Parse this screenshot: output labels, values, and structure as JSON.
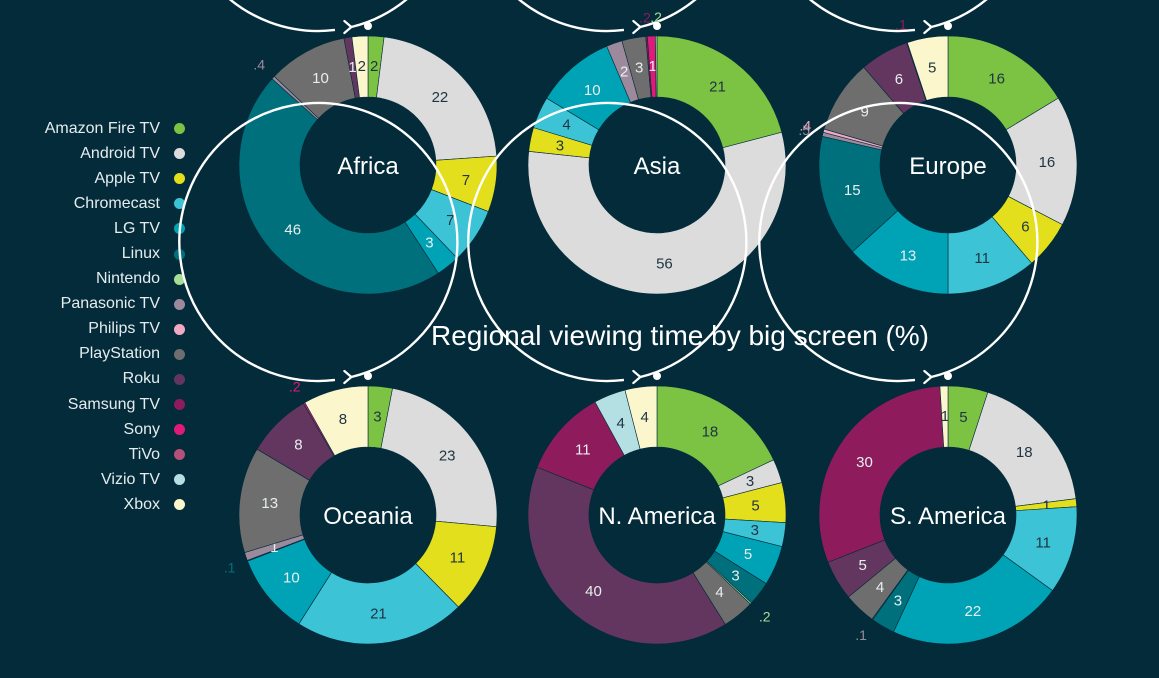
{
  "title": "Regional viewing time by big screen (%)",
  "colors": {
    "background": "#032b3a",
    "Amazon Fire TV": "#7cc243",
    "Android TV": "#dcdcdc",
    "Apple TV": "#e3df1c",
    "Chromecast": "#3cc3d5",
    "LG TV": "#00a3b5",
    "Linux": "#00707c",
    "Nintendo": "#a8dd96",
    "Panasonic TV": "#9c8a9c",
    "Philips TV": "#f1a9c4",
    "PlayStation": "#6e6e6e",
    "Roku": "#62365e",
    "Samsung TV": "#8e1c5c",
    "Sony": "#e0197a",
    "TiVo": "#b4507a",
    "Vizio TV": "#b4e0e4",
    "Xbox": "#fbf6cc"
  },
  "legend": [
    "Amazon Fire TV",
    "Android TV",
    "Apple TV ",
    "Chromecast",
    "LG TV",
    "Linux",
    "Nintendo",
    "Panasonic TV",
    "Philips TV",
    "PlayStation",
    "Roku",
    "Samsung TV",
    "Sony",
    "TiVo",
    "Vizio TV",
    "Xbox"
  ],
  "chart_data": [
    {
      "type": "pie",
      "variant": "donut",
      "title": "Africa",
      "slices": [
        {
          "name": "Amazon Fire TV",
          "value": 2,
          "label": "2"
        },
        {
          "name": "Android TV",
          "value": 22,
          "label": "22"
        },
        {
          "name": "Apple TV",
          "value": 7,
          "label": "7"
        },
        {
          "name": "Chromecast",
          "value": 7,
          "label": "7"
        },
        {
          "name": "LG TV",
          "value": 3,
          "label": "3"
        },
        {
          "name": "Linux",
          "value": 46,
          "label": "46"
        },
        {
          "name": "Panasonic TV",
          "value": 0.4,
          "label": ".4"
        },
        {
          "name": "PlayStation",
          "value": 10,
          "label": "10"
        },
        {
          "name": "Roku",
          "value": 1,
          "label": "1"
        },
        {
          "name": "Xbox",
          "value": 2,
          "label": "2"
        }
      ]
    },
    {
      "type": "pie",
      "variant": "donut",
      "title": "Asia",
      "slices": [
        {
          "name": "Amazon Fire TV",
          "value": 21,
          "label": "21"
        },
        {
          "name": "Android TV",
          "value": 56,
          "label": "56"
        },
        {
          "name": "Apple TV",
          "value": 3,
          "label": "3"
        },
        {
          "name": "Chromecast",
          "value": 4,
          "label": "4"
        },
        {
          "name": "LG TV",
          "value": 10,
          "label": "10"
        },
        {
          "name": "Panasonic TV",
          "value": 2,
          "label": "2"
        },
        {
          "name": "PlayStation",
          "value": 3,
          "label": "3"
        },
        {
          "name": "Samsung TV",
          "value": 0.2,
          "label": ".2"
        },
        {
          "name": "Sony",
          "value": 1,
          "label": "1"
        },
        {
          "name": "Nintendo",
          "value": 0.2,
          "label": ".2"
        }
      ]
    },
    {
      "type": "pie",
      "variant": "donut",
      "title": "Europe",
      "slices": [
        {
          "name": "Amazon Fire TV",
          "value": 16,
          "label": "16"
        },
        {
          "name": "Android TV",
          "value": 16,
          "label": "16"
        },
        {
          "name": "Apple TV",
          "value": 6,
          "label": "6"
        },
        {
          "name": "Chromecast",
          "value": 11,
          "label": "11"
        },
        {
          "name": "LG TV",
          "value": 13,
          "label": "13"
        },
        {
          "name": "Linux",
          "value": 15,
          "label": "15"
        },
        {
          "name": "Panasonic TV",
          "value": 0.5,
          "label": ".5"
        },
        {
          "name": "Philips TV",
          "value": 0.4,
          "label": ".4"
        },
        {
          "name": "PlayStation",
          "value": 9,
          "label": "9"
        },
        {
          "name": "Roku",
          "value": 6,
          "label": "6"
        },
        {
          "name": "Samsung TV",
          "value": 0.1,
          "label": ".1"
        },
        {
          "name": "Xbox",
          "value": 5,
          "label": "5"
        }
      ]
    },
    {
      "type": "pie",
      "variant": "donut",
      "title": "Oceania",
      "slices": [
        {
          "name": "Amazon Fire TV",
          "value": 3,
          "label": "3"
        },
        {
          "name": "Android TV",
          "value": 23,
          "label": "23"
        },
        {
          "name": "Apple TV",
          "value": 11,
          "label": "11"
        },
        {
          "name": "Chromecast",
          "value": 21,
          "label": "21"
        },
        {
          "name": "LG TV",
          "value": 10,
          "label": "10"
        },
        {
          "name": "Linux",
          "value": 0.1,
          "label": ".1"
        },
        {
          "name": "Panasonic TV",
          "value": 1,
          "label": "1"
        },
        {
          "name": "PlayStation",
          "value": 13,
          "label": "13"
        },
        {
          "name": "Roku",
          "value": 8,
          "label": "8"
        },
        {
          "name": "Sony",
          "value": 0.2,
          "label": ".2"
        },
        {
          "name": "Xbox",
          "value": 8,
          "label": "8"
        }
      ]
    },
    {
      "type": "pie",
      "variant": "donut",
      "title": "N. America",
      "slices": [
        {
          "name": "Amazon Fire TV",
          "value": 18,
          "label": "18"
        },
        {
          "name": "Android TV",
          "value": 3,
          "label": "3"
        },
        {
          "name": "Apple TV",
          "value": 5,
          "label": "5"
        },
        {
          "name": "Chromecast",
          "value": 3,
          "label": "3"
        },
        {
          "name": "LG TV",
          "value": 5,
          "label": "5"
        },
        {
          "name": "Linux",
          "value": 3,
          "label": "3"
        },
        {
          "name": "Nintendo",
          "value": 0.2,
          "label": ".2"
        },
        {
          "name": "PlayStation",
          "value": 4,
          "label": "4"
        },
        {
          "name": "Roku",
          "value": 40,
          "label": "40"
        },
        {
          "name": "Samsung TV",
          "value": 11,
          "label": "11"
        },
        {
          "name": "Vizio TV",
          "value": 4,
          "label": "4"
        },
        {
          "name": "Xbox",
          "value": 4,
          "label": "4"
        }
      ]
    },
    {
      "type": "pie",
      "variant": "donut",
      "title": "S. America",
      "slices": [
        {
          "name": "Amazon Fire TV",
          "value": 5,
          "label": "5"
        },
        {
          "name": "Android TV",
          "value": 18,
          "label": "18"
        },
        {
          "name": "Apple TV",
          "value": 1,
          "label": "1"
        },
        {
          "name": "Chromecast",
          "value": 11,
          "label": "11"
        },
        {
          "name": "LG TV",
          "value": 22,
          "label": "22"
        },
        {
          "name": "Linux",
          "value": 3,
          "label": "3"
        },
        {
          "name": "Panasonic TV",
          "value": 0.1,
          "label": ".1"
        },
        {
          "name": "PlayStation",
          "value": 4,
          "label": "4"
        },
        {
          "name": "Roku",
          "value": 5,
          "label": "5"
        },
        {
          "name": "Samsung TV",
          "value": 30,
          "label": "30"
        },
        {
          "name": "Xbox",
          "value": 1,
          "label": "1"
        }
      ]
    }
  ]
}
